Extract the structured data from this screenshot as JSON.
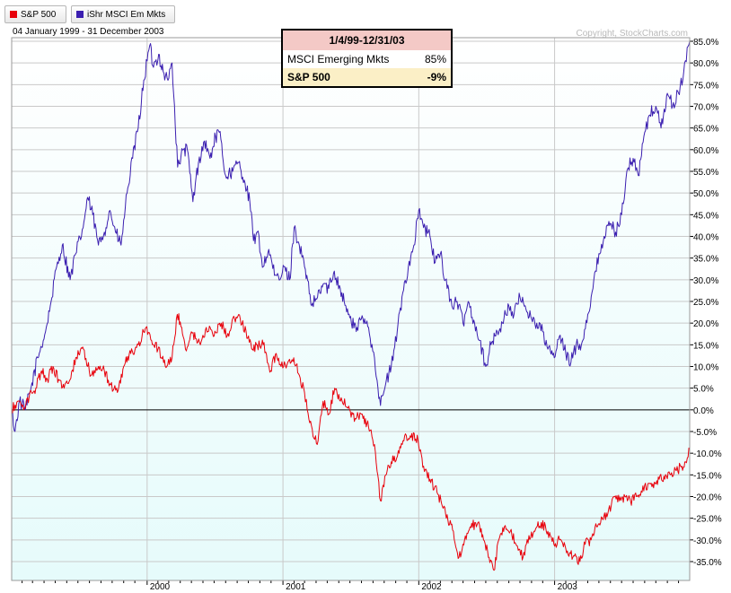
{
  "legend": [
    {
      "label": "S&P 500",
      "color": "#e8000b"
    },
    {
      "label": "iShr MSCI Em Mkts",
      "color": "#3b1fb0"
    }
  ],
  "date_range": "04 January 1999 - 31 December 2003",
  "copyright": "Copyright, StockCharts.com",
  "perf_table": {
    "header": "1/4/99-12/31/03",
    "rows": [
      {
        "name": "MSCI Emerging Mkts",
        "value": "85%"
      },
      {
        "name": "S&P 500",
        "value": "-9%"
      }
    ]
  },
  "colors": {
    "sp500": "#e8000b",
    "msci": "#3b1fb0",
    "zero_line": "#000000",
    "grid": "#c9c9c9",
    "background_bottom": "#e6fbfb"
  },
  "chart_data": {
    "type": "line",
    "x_range": [
      "1999-01-04",
      "2003-12-31"
    ],
    "ylim": [
      -37,
      87
    ],
    "yticks": [
      "85.0%",
      "80.0%",
      "75.0%",
      "70.0%",
      "65.0%",
      "60.0%",
      "55.0%",
      "50.0%",
      "45.0%",
      "40.0%",
      "35.0%",
      "30.0%",
      "25.0%",
      "20.0%",
      "15.0%",
      "10.0%",
      "5.0%",
      "0.0%",
      "-5.0%",
      "-10.0%",
      "-15.0%",
      "-20.0%",
      "-25.0%",
      "-30.0%",
      "-35.0%"
    ],
    "xticks": [
      {
        "date": "2000-01-03",
        "label": "2000"
      },
      {
        "date": "2001-01-02",
        "label": "2001"
      },
      {
        "date": "2002-01-02",
        "label": "2002"
      },
      {
        "date": "2003-01-02",
        "label": "2003"
      }
    ],
    "grid": true,
    "series": [
      {
        "name": "iShr MSCI Em Mkts",
        "points": [
          [
            "1999-01-04",
            0
          ],
          [
            "1999-01-13",
            -5
          ],
          [
            "1999-01-25",
            2
          ],
          [
            "1999-02-10",
            0
          ],
          [
            "1999-02-25",
            5
          ],
          [
            "1999-03-15",
            12
          ],
          [
            "1999-04-05",
            18
          ],
          [
            "1999-04-20",
            25
          ],
          [
            "1999-05-05",
            33
          ],
          [
            "1999-05-20",
            38
          ],
          [
            "1999-06-10",
            30
          ],
          [
            "1999-06-25",
            36
          ],
          [
            "1999-07-15",
            42
          ],
          [
            "1999-07-27",
            49
          ],
          [
            "1999-08-10",
            45
          ],
          [
            "1999-08-25",
            38
          ],
          [
            "1999-09-10",
            41
          ],
          [
            "1999-09-25",
            46
          ],
          [
            "1999-10-10",
            41
          ],
          [
            "1999-10-25",
            38
          ],
          [
            "1999-11-10",
            50
          ],
          [
            "1999-11-25",
            58
          ],
          [
            "1999-12-10",
            65
          ],
          [
            "1999-12-25",
            76
          ],
          [
            "2000-01-10",
            84
          ],
          [
            "2000-01-20",
            79
          ],
          [
            "2000-02-03",
            82
          ],
          [
            "2000-02-15",
            78
          ],
          [
            "2000-02-28",
            76
          ],
          [
            "2000-03-10",
            80
          ],
          [
            "2000-03-25",
            56
          ],
          [
            "2000-04-10",
            60
          ],
          [
            "2000-04-20",
            60
          ],
          [
            "2000-05-05",
            48
          ],
          [
            "2000-05-20",
            57
          ],
          [
            "2000-06-05",
            62
          ],
          [
            "2000-06-20",
            58
          ],
          [
            "2000-07-05",
            63
          ],
          [
            "2000-07-15",
            64
          ],
          [
            "2000-08-01",
            54
          ],
          [
            "2000-08-20",
            55
          ],
          [
            "2000-09-05",
            57
          ],
          [
            "2000-09-20",
            53
          ],
          [
            "2000-10-05",
            48
          ],
          [
            "2000-10-15",
            39
          ],
          [
            "2000-10-25",
            41
          ],
          [
            "2000-11-10",
            33
          ],
          [
            "2000-11-25",
            37
          ],
          [
            "2000-12-10",
            31
          ],
          [
            "2000-12-25",
            30
          ],
          [
            "2001-01-05",
            33
          ],
          [
            "2001-01-20",
            30
          ],
          [
            "2001-02-01",
            42
          ],
          [
            "2001-02-15",
            38
          ],
          [
            "2001-03-01",
            33
          ],
          [
            "2001-03-20",
            24
          ],
          [
            "2001-04-05",
            26
          ],
          [
            "2001-04-20",
            29
          ],
          [
            "2001-05-05",
            28
          ],
          [
            "2001-05-20",
            32
          ],
          [
            "2001-06-05",
            28
          ],
          [
            "2001-06-20",
            24
          ],
          [
            "2001-07-05",
            20
          ],
          [
            "2001-07-20",
            19
          ],
          [
            "2001-08-05",
            21
          ],
          [
            "2001-08-20",
            19
          ],
          [
            "2001-09-05",
            12
          ],
          [
            "2001-09-21",
            1
          ],
          [
            "2001-10-05",
            6
          ],
          [
            "2001-10-20",
            10
          ],
          [
            "2001-11-05",
            18
          ],
          [
            "2001-11-20",
            27
          ],
          [
            "2001-12-05",
            33
          ],
          [
            "2001-12-20",
            38
          ],
          [
            "2002-01-02",
            46
          ],
          [
            "2002-01-15",
            42
          ],
          [
            "2002-02-01",
            40
          ],
          [
            "2002-02-15",
            34
          ],
          [
            "2002-03-01",
            36
          ],
          [
            "2002-03-15",
            30
          ],
          [
            "2002-04-01",
            24
          ],
          [
            "2002-04-15",
            25
          ],
          [
            "2002-05-01",
            20
          ],
          [
            "2002-05-15",
            25
          ],
          [
            "2002-06-01",
            20
          ],
          [
            "2002-06-15",
            16
          ],
          [
            "2002-07-01",
            10
          ],
          [
            "2002-07-15",
            15
          ],
          [
            "2002-08-01",
            18
          ],
          [
            "2002-08-15",
            20
          ],
          [
            "2002-09-01",
            24
          ],
          [
            "2002-09-15",
            22
          ],
          [
            "2002-10-01",
            26
          ],
          [
            "2002-10-15",
            24
          ],
          [
            "2002-11-01",
            21
          ],
          [
            "2002-11-15",
            20
          ],
          [
            "2002-12-01",
            18
          ],
          [
            "2002-12-15",
            14
          ],
          [
            "2003-01-01",
            12
          ],
          [
            "2003-01-15",
            17
          ],
          [
            "2003-02-01",
            13
          ],
          [
            "2003-02-15",
            11
          ],
          [
            "2003-03-01",
            15
          ],
          [
            "2003-03-15",
            15
          ],
          [
            "2003-04-01",
            22
          ],
          [
            "2003-04-15",
            28
          ],
          [
            "2003-05-01",
            36
          ],
          [
            "2003-05-15",
            40
          ],
          [
            "2003-06-01",
            43
          ],
          [
            "2003-06-15",
            41
          ],
          [
            "2003-07-01",
            45
          ],
          [
            "2003-07-15",
            55
          ],
          [
            "2003-08-01",
            58
          ],
          [
            "2003-08-15",
            54
          ],
          [
            "2003-09-01",
            64
          ],
          [
            "2003-09-15",
            68
          ],
          [
            "2003-10-01",
            70
          ],
          [
            "2003-10-15",
            65
          ],
          [
            "2003-11-01",
            73
          ],
          [
            "2003-11-15",
            70
          ],
          [
            "2003-12-01",
            73
          ],
          [
            "2003-12-15",
            78
          ],
          [
            "2003-12-31",
            85
          ]
        ]
      },
      {
        "name": "S&P 500",
        "points": [
          [
            "1999-01-04",
            0
          ],
          [
            "1999-01-20",
            2
          ],
          [
            "1999-02-05",
            0
          ],
          [
            "1999-02-20",
            3
          ],
          [
            "1999-03-10",
            5
          ],
          [
            "1999-03-25",
            9
          ],
          [
            "1999-04-10",
            7
          ],
          [
            "1999-04-25",
            10
          ],
          [
            "1999-05-10",
            7
          ],
          [
            "1999-05-25",
            5
          ],
          [
            "1999-06-10",
            7
          ],
          [
            "1999-06-25",
            12
          ],
          [
            "1999-07-16",
            14
          ],
          [
            "1999-08-05",
            8
          ],
          [
            "1999-08-25",
            10
          ],
          [
            "1999-09-10",
            9
          ],
          [
            "1999-09-25",
            6
          ],
          [
            "1999-10-15",
            4
          ],
          [
            "1999-11-01",
            10
          ],
          [
            "1999-11-20",
            13
          ],
          [
            "1999-12-10",
            15
          ],
          [
            "1999-12-31",
            19
          ],
          [
            "2000-01-15",
            16
          ],
          [
            "2000-02-01",
            14
          ],
          [
            "2000-02-25",
            10
          ],
          [
            "2000-03-10",
            12
          ],
          [
            "2000-03-24",
            22
          ],
          [
            "2000-04-05",
            19
          ],
          [
            "2000-04-15",
            14
          ],
          [
            "2000-05-01",
            18
          ],
          [
            "2000-05-25",
            15
          ],
          [
            "2000-06-10",
            19
          ],
          [
            "2000-07-01",
            17
          ],
          [
            "2000-07-20",
            20
          ],
          [
            "2000-08-05",
            17
          ],
          [
            "2000-08-25",
            21
          ],
          [
            "2000-09-05",
            22
          ],
          [
            "2000-09-25",
            18
          ],
          [
            "2000-10-10",
            14
          ],
          [
            "2000-10-25",
            15
          ],
          [
            "2000-11-10",
            15
          ],
          [
            "2000-11-30",
            9
          ],
          [
            "2000-12-15",
            13
          ],
          [
            "2000-12-28",
            10
          ],
          [
            "2001-01-15",
            11
          ],
          [
            "2001-01-31",
            12
          ],
          [
            "2001-02-15",
            8
          ],
          [
            "2001-03-01",
            4
          ],
          [
            "2001-03-15",
            -3
          ],
          [
            "2001-04-04",
            -8
          ],
          [
            "2001-04-20",
            2
          ],
          [
            "2001-05-05",
            -1
          ],
          [
            "2001-05-21",
            5
          ],
          [
            "2001-06-10",
            2
          ],
          [
            "2001-06-30",
            0
          ],
          [
            "2001-07-15",
            -2
          ],
          [
            "2001-08-01",
            -1
          ],
          [
            "2001-08-20",
            -4
          ],
          [
            "2001-09-05",
            -8
          ],
          [
            "2001-09-21",
            -21
          ],
          [
            "2001-10-05",
            -15
          ],
          [
            "2001-10-20",
            -12
          ],
          [
            "2001-11-10",
            -10
          ],
          [
            "2001-11-25",
            -6
          ],
          [
            "2001-12-10",
            -6
          ],
          [
            "2001-12-31",
            -7
          ],
          [
            "2002-01-15",
            -13
          ],
          [
            "2002-02-01",
            -16
          ],
          [
            "2002-02-20",
            -19
          ],
          [
            "2002-03-15",
            -24
          ],
          [
            "2002-04-05",
            -28
          ],
          [
            "2002-04-20",
            -34
          ],
          [
            "2002-05-05",
            -30
          ],
          [
            "2002-05-20",
            -27
          ],
          [
            "2002-06-10",
            -26
          ],
          [
            "2002-06-25",
            -30
          ],
          [
            "2002-07-10",
            -34
          ],
          [
            "2002-07-23",
            -37
          ],
          [
            "2002-08-05",
            -30
          ],
          [
            "2002-08-20",
            -27
          ],
          [
            "2002-09-05",
            -28
          ],
          [
            "2002-09-20",
            -31
          ],
          [
            "2002-10-09",
            -34
          ],
          [
            "2002-10-25",
            -29
          ],
          [
            "2002-11-10",
            -28
          ],
          [
            "2002-11-27",
            -26
          ],
          [
            "2002-12-15",
            -28
          ],
          [
            "2002-12-31",
            -31
          ],
          [
            "2003-01-15",
            -30
          ],
          [
            "2003-02-01",
            -32
          ],
          [
            "2003-02-20",
            -34
          ],
          [
            "2003-03-11",
            -35
          ],
          [
            "2003-03-25",
            -31
          ],
          [
            "2003-04-10",
            -30
          ],
          [
            "2003-04-25",
            -27
          ],
          [
            "2003-05-10",
            -25
          ],
          [
            "2003-05-25",
            -24
          ],
          [
            "2003-06-10",
            -20
          ],
          [
            "2003-06-25",
            -21
          ],
          [
            "2003-07-10",
            -20
          ],
          [
            "2003-07-25",
            -21
          ],
          [
            "2003-08-10",
            -20
          ],
          [
            "2003-08-25",
            -19
          ],
          [
            "2003-09-10",
            -17
          ],
          [
            "2003-09-25",
            -18
          ],
          [
            "2003-10-10",
            -16
          ],
          [
            "2003-10-25",
            -16
          ],
          [
            "2003-11-10",
            -15
          ],
          [
            "2003-11-25",
            -14
          ],
          [
            "2003-12-10",
            -13
          ],
          [
            "2003-12-20",
            -12
          ],
          [
            "2003-12-31",
            -9
          ]
        ]
      }
    ]
  }
}
